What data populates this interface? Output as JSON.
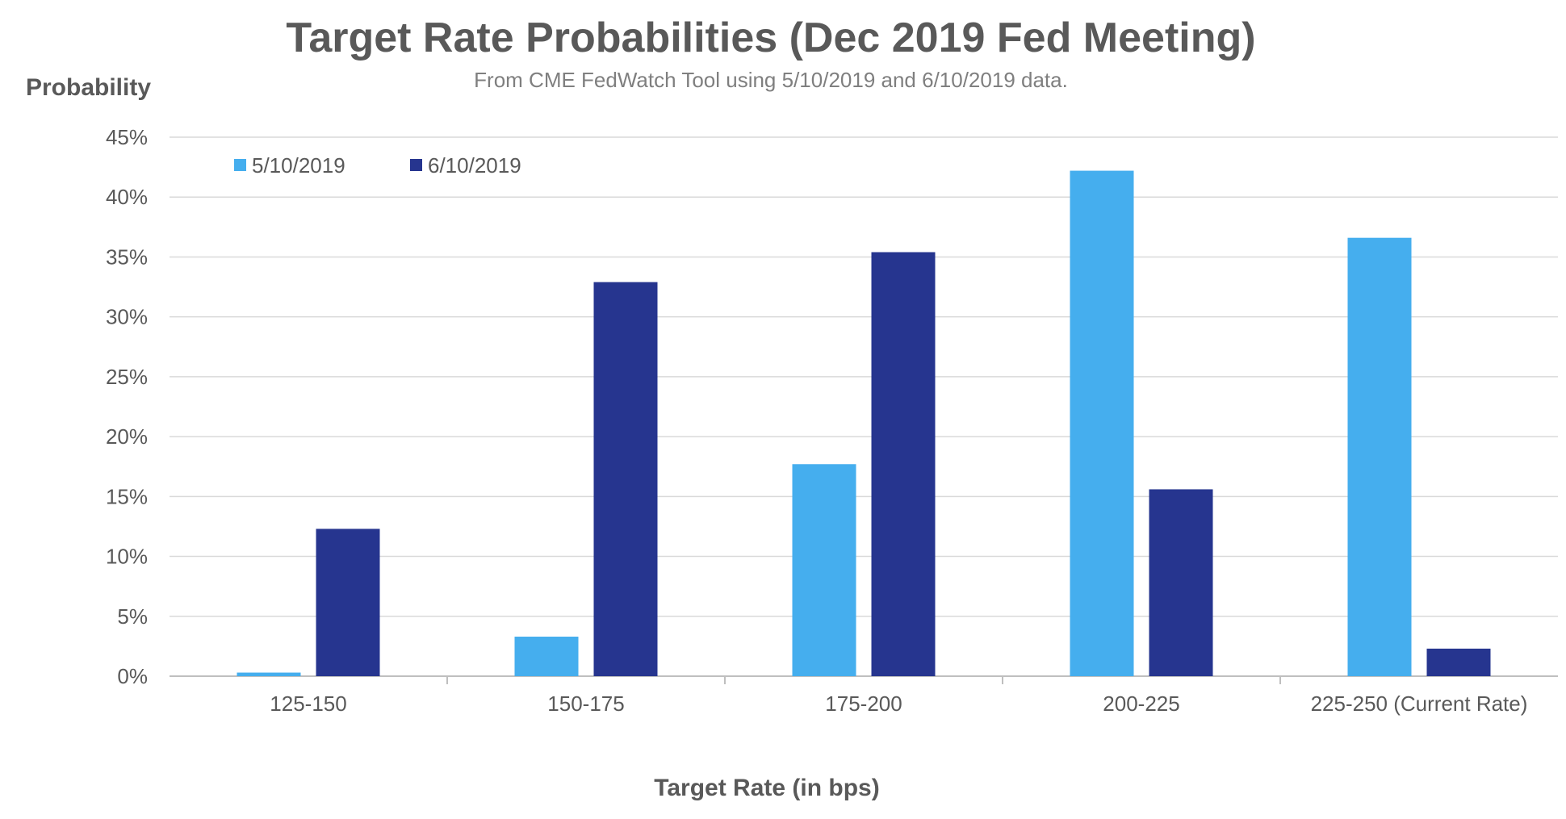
{
  "chart_data": {
    "type": "bar",
    "title": "Target Rate Probabilities (Dec 2019 Fed Meeting)",
    "subtitle": "From CME FedWatch Tool using 5/10/2019 and 6/10/2019 data.",
    "ylabel": "Probability",
    "xlabel": "Target Rate (in bps)",
    "categories": [
      "125-150",
      "150-175",
      "175-200",
      "200-225",
      "225-250 (Current Rate)"
    ],
    "series": [
      {
        "name": "5/10/2019",
        "color": "#45aeee",
        "values": [
          0.3,
          3.3,
          17.7,
          42.2,
          36.6
        ]
      },
      {
        "name": "6/10/2019",
        "color": "#26358f",
        "values": [
          12.3,
          32.9,
          35.4,
          15.6,
          2.3
        ]
      }
    ],
    "ylim": [
      0,
      45
    ],
    "yticks": [
      0,
      5,
      10,
      15,
      20,
      25,
      30,
      35,
      40,
      45
    ],
    "ytick_format": "%",
    "grid": true,
    "legend_position": "top-left"
  }
}
